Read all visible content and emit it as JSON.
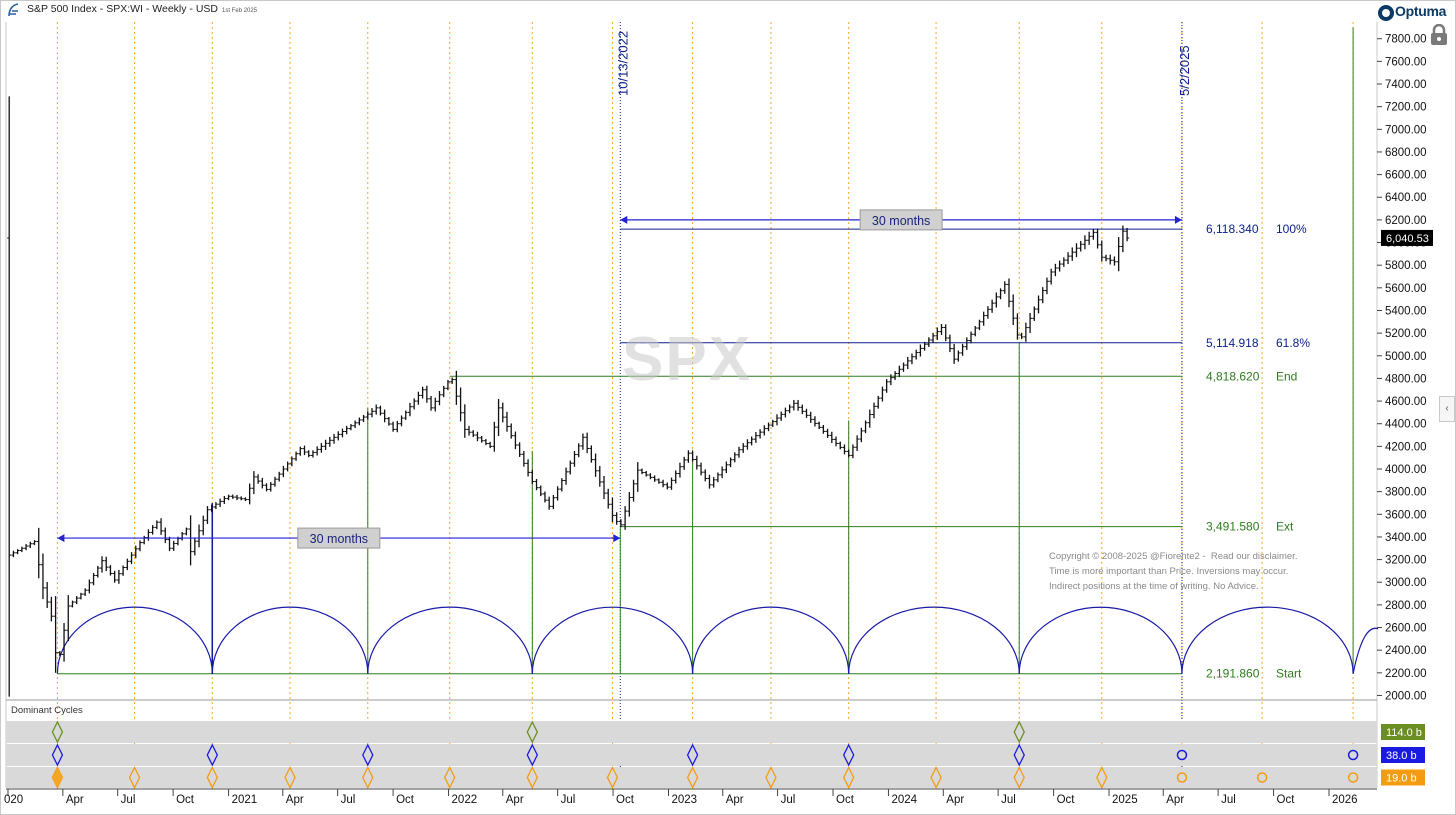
{
  "header": {
    "title": "S&P 500 Index - SPX:WI - Weekly - USD",
    "date_stamp": "1st Feb 2025"
  },
  "brand": {
    "name": "Optuma"
  },
  "watermark": "SPX",
  "copyright": [
    "Copyright © 2008-2025 @Fiorente2 -  Read our disclaimer.",
    "Time is more important than Price. Inversions may occur.",
    "Indirect positions at the time of writing. No Advice."
  ],
  "panel": {
    "title": "Dominant Cycles"
  },
  "chart_data": {
    "type": "candlestick",
    "interval": "weekly",
    "price_axis": {
      "ticks": [
        2000,
        2200,
        2400,
        2600,
        2800,
        3000,
        3200,
        3400,
        3600,
        3800,
        4000,
        4200,
        4400,
        4600,
        4800,
        5000,
        5200,
        5400,
        5600,
        5800,
        6000,
        6200,
        6400,
        6600,
        6800,
        7000,
        7200,
        7400,
        7600,
        7800
      ],
      "tick_labels": [
        "2000.00",
        "2200.00",
        "2400.00",
        "2600.00",
        "2800.00",
        "3000.00",
        "3200.00",
        "3400.00",
        "3600.00",
        "3800.00",
        "4000.00",
        "4200.00",
        "4400.00",
        "4600.00",
        "4800.00",
        "5000.00",
        "5200.00",
        "5400.00",
        "5600.00",
        "5800.00",
        "6000.00",
        "6200.00",
        "6400.00",
        "6600.00",
        "6800.00",
        "7000.00",
        "7200.00",
        "7400.00",
        "7600.00",
        "7800.00"
      ],
      "range": [
        1960,
        7930
      ]
    },
    "time_axis": {
      "range": [
        "2020-01-01",
        "2026-03-20"
      ],
      "ticks": [
        {
          "date": "2020-01-01",
          "label": "020"
        },
        {
          "date": "2020-04-01",
          "label": "Apr"
        },
        {
          "date": "2020-07-01",
          "label": "Jul"
        },
        {
          "date": "2020-10-01",
          "label": "Oct"
        },
        {
          "date": "2021-01-01",
          "label": "2021"
        },
        {
          "date": "2021-04-01",
          "label": "Apr"
        },
        {
          "date": "2021-07-01",
          "label": "Jul"
        },
        {
          "date": "2021-10-01",
          "label": "Oct"
        },
        {
          "date": "2022-01-01",
          "label": "2022"
        },
        {
          "date": "2022-04-01",
          "label": "Apr"
        },
        {
          "date": "2022-07-01",
          "label": "Jul"
        },
        {
          "date": "2022-10-01",
          "label": "Oct"
        },
        {
          "date": "2023-01-01",
          "label": "2023"
        },
        {
          "date": "2023-04-01",
          "label": "Apr"
        },
        {
          "date": "2023-07-01",
          "label": "Jul"
        },
        {
          "date": "2023-10-01",
          "label": "Oct"
        },
        {
          "date": "2024-01-01",
          "label": "2024"
        },
        {
          "date": "2024-04-01",
          "label": "Apr"
        },
        {
          "date": "2024-07-01",
          "label": "Jul"
        },
        {
          "date": "2024-10-01",
          "label": "Oct"
        },
        {
          "date": "2025-01-01",
          "label": "2025"
        },
        {
          "date": "2025-04-01",
          "label": "Apr"
        },
        {
          "date": "2025-07-01",
          "label": "Jul"
        },
        {
          "date": "2025-10-01",
          "label": "Oct"
        },
        {
          "date": "2026-01-01",
          "label": "2026"
        }
      ]
    },
    "price_path": [
      [
        "2020-01-03",
        3240
      ],
      [
        "2020-01-24",
        3300
      ],
      [
        "2020-02-14",
        3360
      ],
      [
        "2020-02-28",
        2950
      ],
      [
        "2020-03-13",
        2700
      ],
      [
        "2020-03-23",
        2240
      ],
      [
        "2020-04-10",
        2790
      ],
      [
        "2020-05-08",
        2930
      ],
      [
        "2020-06-05",
        3190
      ],
      [
        "2020-06-26",
        3020
      ],
      [
        "2020-08-07",
        3350
      ],
      [
        "2020-09-04",
        3530
      ],
      [
        "2020-09-25",
        3300
      ],
      [
        "2020-10-23",
        3470
      ],
      [
        "2020-10-30",
        3270
      ],
      [
        "2020-11-27",
        3640
      ],
      [
        "2020-12-31",
        3760
      ],
      [
        "2021-01-29",
        3730
      ],
      [
        "2021-02-12",
        3930
      ],
      [
        "2021-03-05",
        3820
      ],
      [
        "2021-04-30",
        4180
      ],
      [
        "2021-05-14",
        4120
      ],
      [
        "2021-06-25",
        4280
      ],
      [
        "2021-08-27",
        4510
      ],
      [
        "2021-09-03",
        4540
      ],
      [
        "2021-10-01",
        4350
      ],
      [
        "2021-11-19",
        4700
      ],
      [
        "2021-12-03",
        4540
      ],
      [
        "2021-12-31",
        4770
      ],
      [
        "2022-01-07",
        4790
      ],
      [
        "2022-01-28",
        4350
      ],
      [
        "2022-03-11",
        4200
      ],
      [
        "2022-03-25",
        4540
      ],
      [
        "2022-04-29",
        4130
      ],
      [
        "2022-05-20",
        3890
      ],
      [
        "2022-06-17",
        3670
      ],
      [
        "2022-08-12",
        4280
      ],
      [
        "2022-09-30",
        3590
      ],
      [
        "2022-10-13",
        3490
      ],
      [
        "2022-11-11",
        3990
      ],
      [
        "2022-12-30",
        3840
      ],
      [
        "2023-02-03",
        4140
      ],
      [
        "2023-03-10",
        3860
      ],
      [
        "2023-04-28",
        4170
      ],
      [
        "2023-06-30",
        4450
      ],
      [
        "2023-07-28",
        4580
      ],
      [
        "2023-10-27",
        4120
      ],
      [
        "2023-12-29",
        4770
      ],
      [
        "2024-03-29",
        5250
      ],
      [
        "2024-04-19",
        4970
      ],
      [
        "2024-07-12",
        5630
      ],
      [
        "2024-08-05",
        5120
      ],
      [
        "2024-09-27",
        5740
      ],
      [
        "2024-12-06",
        6090
      ],
      [
        "2024-12-20",
        5870
      ],
      [
        "2025-01-10",
        5830
      ],
      [
        "2025-01-24",
        6100
      ],
      [
        "2025-01-31",
        6040
      ]
    ],
    "last_price": 6040.53,
    "last_price_label": "6,040.53",
    "date_markers": [
      {
        "date": "2022-10-13",
        "label": "10/13/2022",
        "style": "dotted"
      },
      {
        "date": "2025-05-02",
        "label": "5/2/2025",
        "style": "dotted"
      }
    ],
    "horizontal_levels": [
      {
        "value": 6118.34,
        "label": "6,118.340",
        "tag": "100%",
        "color": "#0b1e8a",
        "start": "2022-10-13"
      },
      {
        "value": 5114.918,
        "label": "5,114.918",
        "tag": "61.8%",
        "color": "#0b1e8a",
        "start": "2022-10-13"
      },
      {
        "value": 4818.62,
        "label": "4,818.620",
        "tag": "End",
        "color": "#2e7d1e",
        "start": "2022-01-03"
      },
      {
        "value": 3491.58,
        "label": "3,491.580",
        "tag": "Ext",
        "color": "#2e7d1e",
        "start": "2022-10-13"
      },
      {
        "value": 2191.86,
        "label": "2,191.860",
        "tag": "Start",
        "color": "#2e7d1e",
        "start": "2020-03-23"
      }
    ],
    "spans": [
      {
        "from": "2020-03-23",
        "to": "2022-10-13",
        "value": 3390,
        "label": "30 months"
      },
      {
        "from": "2022-10-13",
        "to": "2025-05-02",
        "value": 6200,
        "label": "30 months"
      }
    ],
    "cycle_troughs": [
      "2020-03-23",
      "2020-12-05",
      "2021-08-20",
      "2022-05-20",
      "2023-02-10",
      "2023-10-27",
      "2024-08-05",
      "2025-05-02",
      "2026-02-10"
    ],
    "arc_peak_value": 2780,
    "green_verticals": [
      {
        "date": "2020-12-05",
        "value": 3700
      },
      {
        "date": "2021-08-20",
        "value": 4540
      },
      {
        "date": "2022-05-20",
        "value": 4160
      },
      {
        "date": "2022-10-13",
        "value": 3491.58
      },
      {
        "date": "2023-02-10",
        "value": 4170
      },
      {
        "date": "2023-10-27",
        "value": 4430
      },
      {
        "date": "2024-08-05",
        "value": 5114.918
      },
      {
        "date": "2026-02-10",
        "value": 7900
      }
    ],
    "orange_verticals": [
      "2020-03-23",
      "2020-07-29",
      "2020-12-05",
      "2021-04-13",
      "2021-08-20",
      "2022-01-03",
      "2022-05-20",
      "2022-09-30",
      "2023-02-10",
      "2023-06-20",
      "2023-10-27",
      "2024-03-20",
      "2024-08-05",
      "2024-12-20",
      "2025-05-02",
      "2025-09-12",
      "2026-02-10"
    ],
    "dominant_cycles": [
      {
        "label": "114.0 b",
        "color": "#6b8e23",
        "marks": [
          "2020-03-23",
          "2022-05-20",
          "2024-08-05"
        ]
      },
      {
        "label": "38.0 b",
        "color": "#1a1ae0",
        "marks": [
          "2020-03-23",
          "2020-12-05",
          "2021-08-20",
          "2022-05-20",
          "2023-02-10",
          "2023-10-27",
          "2024-08-05"
        ],
        "future": [
          "2025-05-02",
          "2026-02-10"
        ]
      },
      {
        "label": "19.0 b",
        "color": "#f39c12",
        "marks": [
          "2020-03-23",
          "2020-07-29",
          "2020-12-05",
          "2021-04-13",
          "2021-08-20",
          "2022-01-03",
          "2022-05-20",
          "2022-09-30",
          "2023-02-10",
          "2023-06-20",
          "2023-10-27",
          "2024-03-20",
          "2024-08-05",
          "2024-12-20"
        ],
        "future": [
          "2025-05-02",
          "2025-09-12",
          "2026-02-10"
        ]
      }
    ]
  },
  "colors": {
    "price": "#111111",
    "blue": "#0b1e8a",
    "arc": "#1a1aa8",
    "green": "#2e7d1e",
    "orange": "#f5a623",
    "panel_band": "#d9d9d9"
  }
}
